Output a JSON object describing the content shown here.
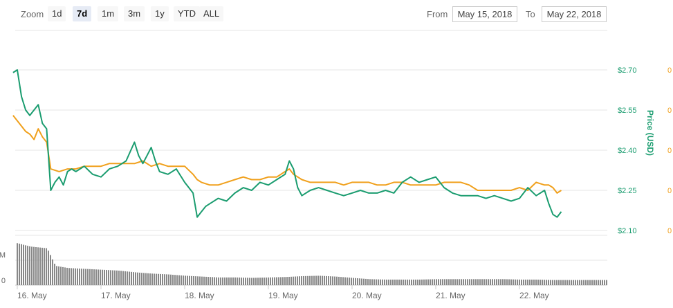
{
  "toolbar": {
    "zoom_label": "Zoom",
    "buttons": [
      "1d",
      "7d",
      "1m",
      "3m",
      "1y",
      "YTD",
      "ALL"
    ],
    "active": "7d",
    "from_label": "From",
    "from_value": "May 15, 2018",
    "to_label": "To",
    "to_value": "May 22, 2018"
  },
  "chart_data": {
    "type": "line",
    "title": "",
    "xlabel": "",
    "ylabel": "Price (USD)",
    "x_tick_labels": [
      "16. May",
      "17. May",
      "18. May",
      "19. May",
      "20. May",
      "21. May",
      "22. May"
    ],
    "y_tick_labels": [
      "$2.70",
      "$2.55",
      "$2.40",
      "$2.25",
      "$2.10"
    ],
    "ylim": [
      2.1,
      2.7
    ],
    "right_axis_tick_labels": [
      "0",
      "0",
      "0",
      "0",
      "0",
      "0"
    ],
    "volume_tick_labels": [
      "M",
      "0"
    ],
    "grid": true,
    "colors": {
      "price": "#1a9c6f",
      "btc": "#f0a01c",
      "volume": "#888888",
      "grid": "#e6e6e6"
    },
    "series": [
      {
        "color": "#1a9c6f",
        "x": [
          15.95,
          16.0,
          16.05,
          16.1,
          16.15,
          16.2,
          16.25,
          16.3,
          16.35,
          16.4,
          16.45,
          16.5,
          16.55,
          16.6,
          16.65,
          16.7,
          16.8,
          16.9,
          17.0,
          17.1,
          17.2,
          17.3,
          17.4,
          17.45,
          17.5,
          17.55,
          17.6,
          17.65,
          17.7,
          17.8,
          17.9,
          18.0,
          18.1,
          18.15,
          18.2,
          18.25,
          18.3,
          18.4,
          18.5,
          18.6,
          18.7,
          18.8,
          18.9,
          19.0,
          19.1,
          19.2,
          19.25,
          19.3,
          19.35,
          19.4,
          19.5,
          19.6,
          19.7,
          19.8,
          19.9,
          20.0,
          20.1,
          20.2,
          20.3,
          20.4,
          20.5,
          20.6,
          20.7,
          20.8,
          20.9,
          21.0,
          21.1,
          21.2,
          21.3,
          21.4,
          21.5,
          21.6,
          21.7,
          21.8,
          21.9,
          22.0,
          22.1,
          22.2,
          22.3,
          22.35,
          22.4,
          22.45,
          22.5
        ],
        "values": [
          2.69,
          2.7,
          2.6,
          2.55,
          2.53,
          2.55,
          2.57,
          2.5,
          2.48,
          2.25,
          2.28,
          2.3,
          2.27,
          2.32,
          2.33,
          2.32,
          2.34,
          2.31,
          2.3,
          2.33,
          2.34,
          2.36,
          2.43,
          2.38,
          2.35,
          2.38,
          2.41,
          2.36,
          2.32,
          2.31,
          2.33,
          2.28,
          2.24,
          2.15,
          2.17,
          2.19,
          2.2,
          2.22,
          2.21,
          2.24,
          2.26,
          2.25,
          2.28,
          2.27,
          2.29,
          2.31,
          2.36,
          2.33,
          2.26,
          2.23,
          2.25,
          2.26,
          2.25,
          2.24,
          2.23,
          2.24,
          2.25,
          2.24,
          2.24,
          2.25,
          2.24,
          2.28,
          2.3,
          2.28,
          2.29,
          2.3,
          2.26,
          2.24,
          2.23,
          2.23,
          2.23,
          2.22,
          2.23,
          2.22,
          2.21,
          2.22,
          2.26,
          2.23,
          2.25,
          2.2,
          2.16,
          2.15,
          2.17
        ]
      },
      {
        "color": "#f0a01c",
        "x": [
          15.95,
          16.0,
          16.05,
          16.1,
          16.15,
          16.2,
          16.25,
          16.3,
          16.35,
          16.4,
          16.5,
          16.6,
          16.7,
          16.8,
          16.9,
          17.0,
          17.1,
          17.2,
          17.3,
          17.4,
          17.5,
          17.6,
          17.7,
          17.8,
          17.9,
          18.0,
          18.1,
          18.15,
          18.2,
          18.3,
          18.4,
          18.5,
          18.6,
          18.7,
          18.8,
          18.9,
          19.0,
          19.1,
          19.2,
          19.25,
          19.3,
          19.4,
          19.5,
          19.6,
          19.7,
          19.8,
          19.9,
          20.0,
          20.1,
          20.2,
          20.3,
          20.4,
          20.5,
          20.6,
          20.7,
          20.8,
          20.9,
          21.0,
          21.1,
          21.2,
          21.3,
          21.4,
          21.5,
          21.6,
          21.7,
          21.8,
          21.9,
          22.0,
          22.1,
          22.2,
          22.3,
          22.35,
          22.4,
          22.45,
          22.5
        ],
        "values": [
          2.53,
          2.51,
          2.49,
          2.47,
          2.46,
          2.44,
          2.48,
          2.45,
          2.43,
          2.33,
          2.32,
          2.33,
          2.33,
          2.34,
          2.34,
          2.34,
          2.35,
          2.35,
          2.35,
          2.35,
          2.36,
          2.34,
          2.35,
          2.34,
          2.34,
          2.34,
          2.31,
          2.29,
          2.28,
          2.27,
          2.27,
          2.28,
          2.29,
          2.3,
          2.29,
          2.29,
          2.3,
          2.3,
          2.32,
          2.33,
          2.31,
          2.29,
          2.28,
          2.28,
          2.28,
          2.28,
          2.27,
          2.28,
          2.28,
          2.28,
          2.27,
          2.27,
          2.28,
          2.28,
          2.27,
          2.27,
          2.27,
          2.27,
          2.28,
          2.28,
          2.28,
          2.27,
          2.25,
          2.25,
          2.25,
          2.25,
          2.25,
          2.26,
          2.25,
          2.28,
          2.27,
          2.27,
          2.26,
          2.24,
          2.25
        ]
      }
    ],
    "volume": {
      "x": [
        15.95,
        16.05,
        16.15,
        16.25,
        16.35,
        16.45,
        16.6,
        16.8,
        17.0,
        17.2,
        17.4,
        17.6,
        17.8,
        18.0,
        18.2,
        18.4,
        18.6,
        18.8,
        19.0,
        19.2,
        19.4,
        19.6,
        19.8,
        20.0,
        20.2,
        20.4,
        20.6,
        20.8,
        21.0,
        21.2,
        21.4,
        21.6,
        21.8,
        22.0,
        22.2,
        22.4,
        22.5
      ],
      "values": [
        1.0,
        0.95,
        0.9,
        0.88,
        0.86,
        0.45,
        0.4,
        0.38,
        0.36,
        0.34,
        0.3,
        0.27,
        0.25,
        0.22,
        0.2,
        0.18,
        0.18,
        0.17,
        0.18,
        0.19,
        0.21,
        0.22,
        0.2,
        0.17,
        0.14,
        0.13,
        0.13,
        0.13,
        0.14,
        0.14,
        0.14,
        0.14,
        0.14,
        0.13,
        0.13,
        0.12,
        0.12
      ]
    }
  }
}
